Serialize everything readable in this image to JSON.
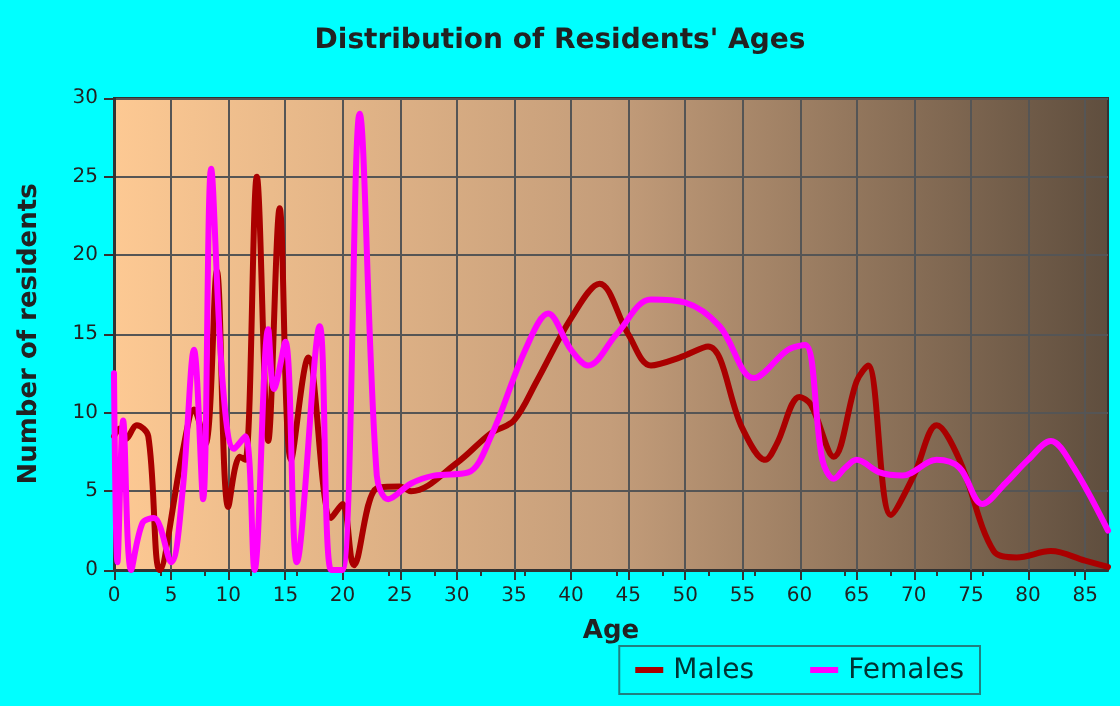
{
  "chart_data": {
    "type": "line",
    "title": "Distribution of Residents' Ages",
    "xlabel": "Age",
    "ylabel": "Number of residents",
    "xlim": [
      0,
      87
    ],
    "xticks": [
      0,
      5,
      10,
      15,
      20,
      25,
      30,
      35,
      40,
      45,
      50,
      55,
      60,
      65,
      70,
      75,
      80,
      85
    ],
    "ylim": [
      0,
      30
    ],
    "yticks": [
      0,
      5,
      10,
      15,
      20,
      25,
      30
    ],
    "grid": true,
    "legend": "bottom right",
    "marker": "none",
    "line_style": "solid",
    "series": [
      {
        "name": "Males",
        "color": "#aa0000",
        "x": [
          0,
          0.5,
          1,
          2,
          3,
          4,
          6,
          7,
          8,
          9,
          10,
          11,
          11.5,
          12.5,
          13.5,
          14.5,
          15.5,
          17,
          19,
          20,
          21,
          23,
          25,
          26,
          30,
          33,
          35,
          37,
          40,
          42.5,
          45,
          47,
          49.5,
          52,
          55,
          57,
          58,
          60,
          61,
          63,
          65,
          66,
          68,
          70,
          72,
          74,
          77,
          79,
          82,
          85,
          87
        ],
        "values": [
          8.5,
          9,
          8.3,
          9.2,
          8.5,
          0,
          7.5,
          10.2,
          8,
          19,
          4,
          7.2,
          7,
          25,
          8.2,
          23,
          7,
          13.5,
          3.3,
          4.2,
          0.3,
          5.2,
          5.3,
          5,
          6.8,
          8.7,
          9.5,
          12,
          16,
          18.2,
          15,
          13,
          13.5,
          14.2,
          9,
          7,
          8,
          11,
          10.5,
          7.2,
          12,
          13,
          3.5,
          6,
          9.2,
          7,
          1.2,
          0.8,
          1.2,
          0.6,
          0.2
        ]
      },
      {
        "name": "Females",
        "color": "#ff00ff",
        "x": [
          0,
          0.3,
          0.8,
          1.5,
          2.5,
          3.5,
          5,
          6,
          7,
          7.8,
          8.5,
          9.5,
          10.5,
          11.5,
          12.3,
          13.5,
          14,
          15,
          16,
          18,
          19,
          20,
          21.5,
          23,
          24,
          26,
          28,
          31,
          33,
          36,
          38,
          40,
          41.5,
          44,
          47,
          50,
          53,
          56,
          59,
          60.5,
          62,
          63,
          64,
          65,
          67,
          69,
          72,
          74,
          76,
          78,
          80,
          82,
          84,
          87
        ],
        "values": [
          12.5,
          0.5,
          9.5,
          0,
          3,
          3.3,
          0.5,
          5,
          14,
          4.5,
          25.5,
          12,
          7.7,
          8.5,
          0,
          15.3,
          11.5,
          14.5,
          0.5,
          15.5,
          0,
          0,
          29,
          6,
          4.5,
          5.5,
          6,
          6.2,
          8.5,
          14,
          16.3,
          14,
          13,
          15,
          17.2,
          17,
          15.5,
          12.2,
          14,
          14.3,
          7,
          5.8,
          6.5,
          7,
          6.2,
          6,
          7,
          6.5,
          4.2,
          5.5,
          7,
          8.2,
          6.5,
          2.5
        ]
      }
    ]
  }
}
